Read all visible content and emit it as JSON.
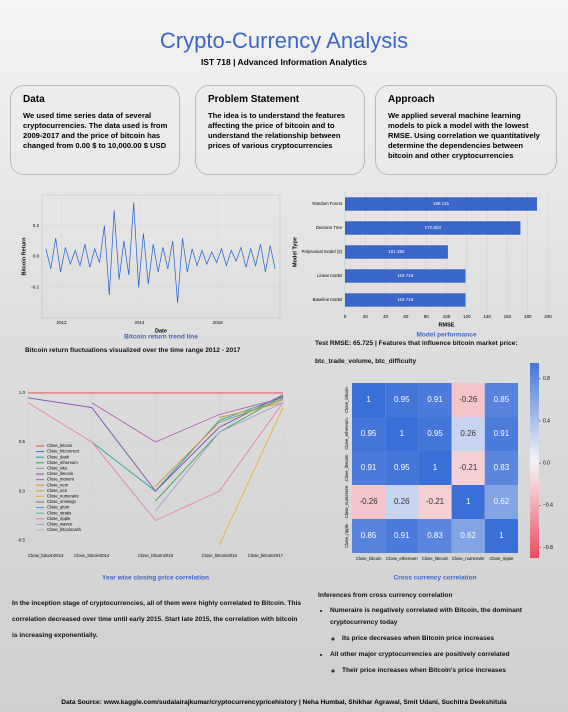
{
  "header": {
    "title": "Crypto-Currency Analysis",
    "subtitle": "IST 718 | Advanced Information Analytics"
  },
  "boxes": [
    {
      "heading": "Data",
      "text": "We used time series data of several cryptocurrencies. The data used is from 2009-2017 and the price of bitcoin has changed from 0.00 $ to 10,000.00 $ USD"
    },
    {
      "heading": "Problem Statement",
      "text": "The idea is to understand the features affecting the price of bitcoin and to understand the relationship between prices of various cryptocurrencies"
    },
    {
      "heading": "Approach",
      "text": "We applied several machine learning models to pick a model with the lowest RMSE. Using correlation we quantitatively determine the dependencies between bitcoin and other cryptocurrencies"
    }
  ],
  "chart_data": [
    {
      "type": "line",
      "caption": "Bitcoin return trend line",
      "xlabel": "Date",
      "ylabel": "Bitcoin Return",
      "color": "#1f5fd0",
      "x": [
        2011.6,
        2011.725,
        2011.85,
        2011.975,
        2012.1,
        2012.225,
        2012.35,
        2012.475,
        2012.6,
        2012.725,
        2012.85,
        2012.975,
        2013.1,
        2013.225,
        2013.35,
        2013.475,
        2013.6,
        2013.725,
        2013.85,
        2013.975,
        2014.1,
        2014.225,
        2014.35,
        2014.475,
        2014.6,
        2014.725,
        2014.85,
        2014.975,
        2015.1,
        2015.225,
        2015.35,
        2015.475,
        2015.6,
        2015.725,
        2015.85,
        2015.975,
        2016.1,
        2016.225,
        2016.35,
        2016.475,
        2016.6,
        2016.725,
        2016.85,
        2016.975,
        2017.1,
        2017.225,
        2017.35,
        2017.475
      ],
      "values": [
        0.05,
        -0.08,
        0.12,
        -0.1,
        0.06,
        -0.05,
        0.04,
        -0.06,
        0.08,
        -0.07,
        0.05,
        -0.04,
        0.2,
        -0.25,
        0.3,
        -0.15,
        0.1,
        -0.12,
        0.35,
        -0.2,
        0.15,
        -0.18,
        0.08,
        -0.1,
        0.06,
        -0.08,
        0.1,
        -0.3,
        0.12,
        -0.1,
        0.05,
        -0.06,
        0.04,
        -0.05,
        0.03,
        -0.04,
        0.05,
        -0.06,
        0.04,
        -0.03,
        0.06,
        -0.07,
        0.05,
        -0.06,
        0.08,
        -0.1,
        0.07,
        -0.08
      ],
      "xlim": [
        2011.5,
        2017.6
      ],
      "xticks": [
        2012,
        2014,
        2016
      ],
      "ylim": [
        -0.4,
        0.4
      ],
      "yticks": [
        -0.2,
        {
          "value": 0,
          "label": "0.0"
        },
        0.2
      ],
      "grid": true
    },
    {
      "type": "barh",
      "caption": "Model performance",
      "xlabel": "RMSE",
      "ylabel": "Model Type",
      "color": "#3a66c9",
      "categories": [
        "Random Forest",
        "Decision Tree",
        "Polynomial model (3)",
        "Linear model",
        "Baseline model"
      ],
      "values": [
        189.115,
        172.823,
        101.382,
        118.719,
        118.719
      ],
      "xlim": [
        0,
        200
      ],
      "xticks": [
        0,
        20,
        40,
        60,
        80,
        100,
        120,
        140,
        160,
        180,
        200
      ],
      "grid": true
    },
    {
      "type": "multiline",
      "caption": "Year wise closing price correlation",
      "legend": "center left",
      "categories": [
        "Close_bitcoin2013",
        "Close_bitcoin2014",
        "Close_bitcoin2015",
        "Close_bitcoin2016",
        "Close_bitcoin2017"
      ],
      "ylim": [
        -0.6,
        1.05
      ],
      "yticks": [
        -0.5,
        {
          "value": 0,
          "label": "0.0"
        },
        0.5,
        {
          "value": 1,
          "label": "1.0"
        }
      ],
      "grid": true,
      "series": [
        {
          "name": "Close_bitcoin",
          "color": "#e8423f",
          "values": [
            1,
            1,
            1,
            1,
            1
          ]
        },
        {
          "name": "Close_bitconnect",
          "color": "#3b6fd8",
          "values": [
            null,
            null,
            null,
            null,
            0.95
          ]
        },
        {
          "name": "Close_dash",
          "color": "#2aa198",
          "values": [
            null,
            0.5,
            0.0,
            0.72,
            0.96
          ]
        },
        {
          "name": "Close_ethereum",
          "color": "#3fa34d",
          "values": [
            null,
            null,
            -0.1,
            0.6,
            0.97
          ]
        },
        {
          "name": "Close_iota",
          "color": "#8c8c8c",
          "values": [
            null,
            null,
            null,
            null,
            0.9
          ]
        },
        {
          "name": "Close_litecoin",
          "color": "#7a4fb0",
          "values": [
            0.95,
            0.85,
            0.0,
            0.65,
            0.98
          ]
        },
        {
          "name": "Close_monero",
          "color": "#b05fb0",
          "values": [
            null,
            0.9,
            0.5,
            0.78,
            0.95
          ]
        },
        {
          "name": "Close_nem",
          "color": "#d98c3a",
          "values": [
            null,
            null,
            0.05,
            0.7,
            0.93
          ]
        },
        {
          "name": "Close_neo",
          "color": "#c9a227",
          "values": [
            null,
            null,
            null,
            0.75,
            0.9
          ]
        },
        {
          "name": "Close_numeraire",
          "color": "#f0b030",
          "values": [
            null,
            null,
            null,
            -0.55,
            0.85
          ]
        },
        {
          "name": "Close_omisego",
          "color": "#6b6b6b",
          "values": [
            null,
            null,
            null,
            null,
            0.88
          ]
        },
        {
          "name": "Close_qtum",
          "color": "#4a8fd0",
          "values": [
            null,
            null,
            null,
            null,
            0.92
          ]
        },
        {
          "name": "Close_stratis",
          "color": "#5bb8a0",
          "values": [
            null,
            null,
            null,
            0.7,
            0.94
          ]
        },
        {
          "name": "Close_ripple",
          "color": "#e880b0",
          "values": [
            0.9,
            0.5,
            -0.3,
            0.0,
            0.9
          ]
        },
        {
          "name": "Close_waves",
          "color": "#a0a0d8",
          "values": [
            null,
            null,
            -0.2,
            0.6,
            0.9
          ]
        },
        {
          "name": "Close_bitcoincash",
          "color": "#b0b0b0",
          "values": [
            null,
            null,
            null,
            null,
            0.8
          ]
        }
      ]
    },
    {
      "type": "heatmap",
      "caption": "Cross currency correlation",
      "labels": [
        "Close_bitcoin",
        "Close_ethereum",
        "Close_litecoin",
        "Close_numeraire",
        "Close_ripple"
      ],
      "values": [
        [
          1,
          0.95,
          0.91,
          -0.26,
          0.85
        ],
        [
          0.95,
          1,
          0.95,
          0.26,
          0.91
        ],
        [
          0.91,
          0.95,
          1,
          -0.21,
          0.83
        ],
        [
          -0.26,
          0.26,
          -0.21,
          1,
          0.62
        ],
        [
          0.85,
          0.91,
          0.83,
          0.62,
          1
        ]
      ],
      "zlim": [
        -0.9,
        0.95
      ],
      "zticks": [
        0.8,
        0.4,
        {
          "value": 0,
          "label": "0.0"
        },
        {
          "value": -0.4,
          "label": "−0.4"
        },
        {
          "value": -0.8,
          "label": "−0.8"
        }
      ]
    }
  ],
  "notes": {
    "return_note": "Bitcoin return fluctuations visualized over the time range 2012 - 2017",
    "rmse_note": "Test RMSE: 65.725 | Features that influence bitcoin market price:",
    "features": "btc_trade_volume, btc_difficulty",
    "trend_note": "In the inception stage of cryptocurrencies,  all of them were highly correlated to Bitcoin. This correlation decreased over time until early 2015. Start late 2015, the correlation with bitcoin is increasing exponentially."
  },
  "inferences": {
    "heading": "Inferences from cross currency correlation",
    "items": [
      "Numeraire is negatively correlated with Bitcoin, the dominant cryptocurrency today",
      "Its price decreases when Bitcoin price increases",
      "All other major cryptocurrencies are positively correlated",
      "Their price increases when Bitcoin's price increases"
    ]
  },
  "footer": "Data Source: www.kaggle.com/sudalairajkumar/cryptocurrencypricehistory | Neha Humbal, Shikhar Agrawal, Smit Udani, Suchitra Deekshitula"
}
